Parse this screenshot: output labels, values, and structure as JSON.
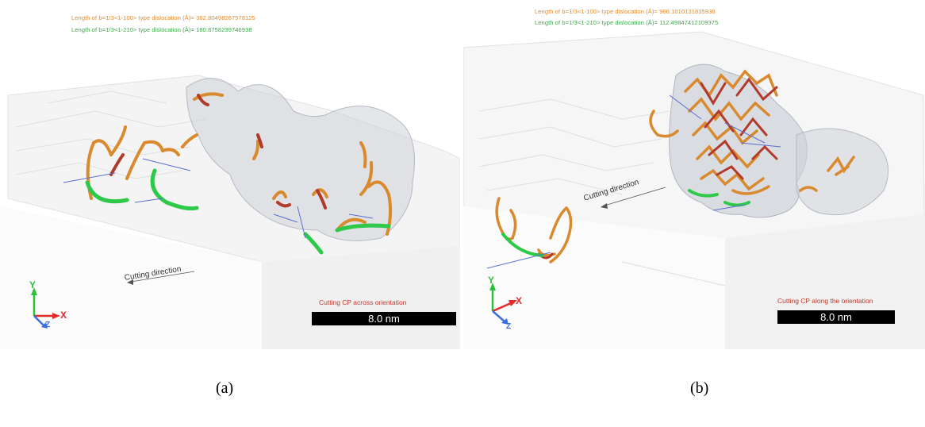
{
  "panels": {
    "a": {
      "length_orange": "Length of b=1/3<1-100> type dislocation (Å)= 362.80498267578125",
      "length_green": "Length of b=1/3<1-210> type dislocation (Å)= 180.8758239746938",
      "cutting_direction": "Cutting direction",
      "cutting_label": "Cutting CP across orientation",
      "scale_bar": "8.0 nm",
      "caption": "(a)"
    },
    "b": {
      "length_orange": "Length of b=1/3<1-100> type dislocation (Å)= 966.1010131835938",
      "length_green": "Length of b=1/3<1-210> type dislocation (Å)= 112.49847412109375",
      "cutting_direction": "Cutting direction",
      "cutting_label": "Cutting CP along the orientation",
      "scale_bar": "8.0 nm",
      "caption": "(b)"
    }
  },
  "axes": {
    "x": "X",
    "y": "Y",
    "z": "Z"
  },
  "colors": {
    "orange_dislocation": "#d9892e",
    "green_dislocation": "#2fc94a",
    "red_dislocation": "#b23a2a",
    "burgers_vector": "#5a6fd0",
    "label_red": "#c0392b"
  }
}
